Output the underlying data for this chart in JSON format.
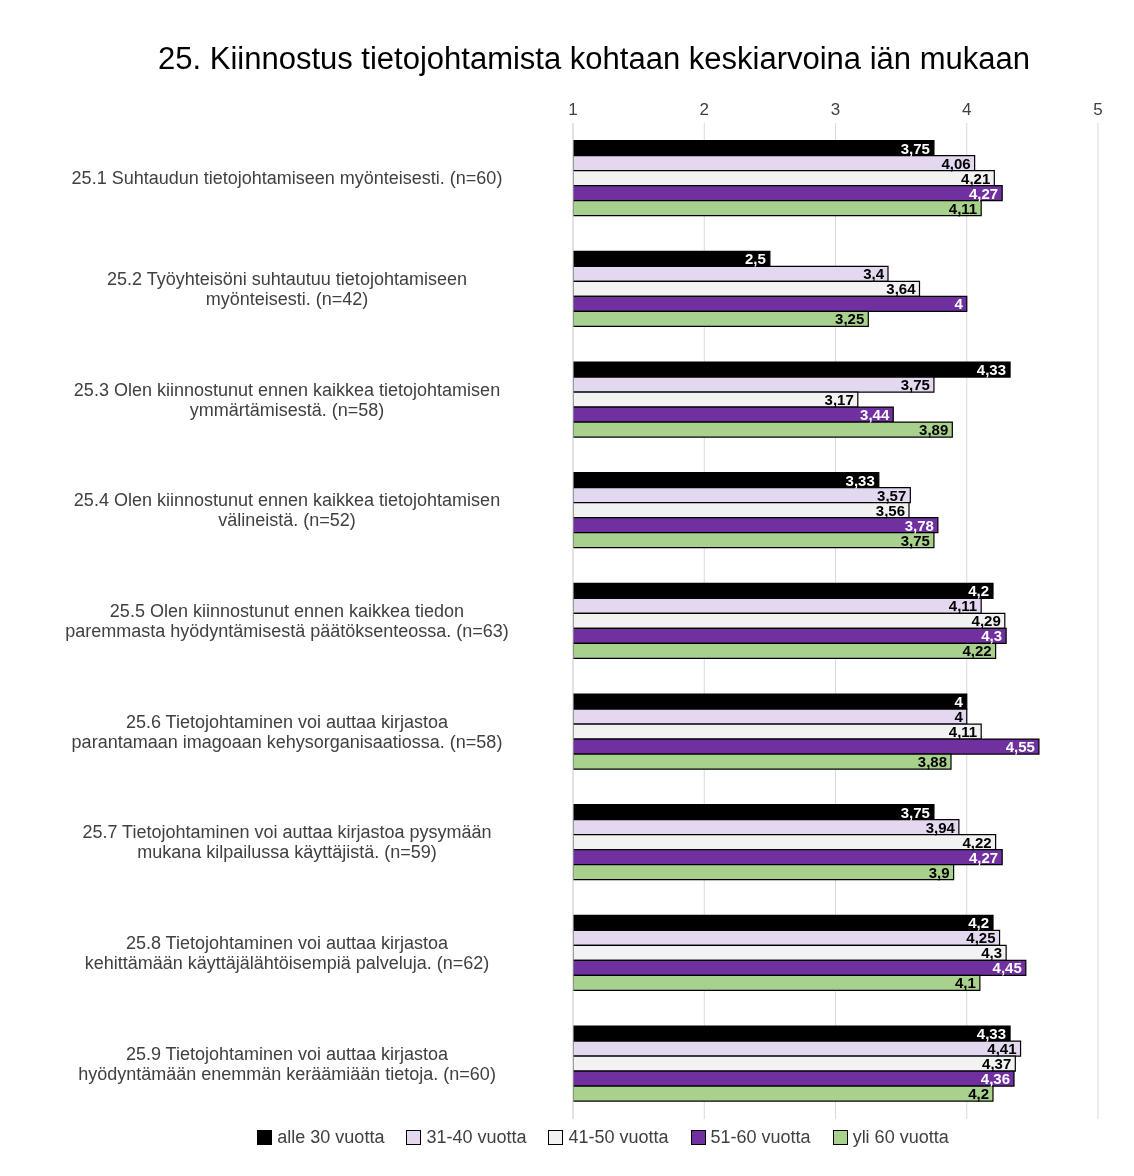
{
  "chart_data": {
    "type": "bar",
    "orientation": "horizontal",
    "title": "25. Kiinnostus tietojohtamista kohtaan keskiarvoina iän mukaan",
    "categories": [
      "25.1 Suhtaudun tietojohtamiseen myönteisesti. (n=60)",
      "25.2 Työyhteisöni suhtautuu tietojohtamiseen myönteisesti. (n=42)",
      "25.3 Olen kiinnostunut ennen kaikkea tietojohtamisen ymmärtämisestä. (n=58)",
      "25.4 Olen kiinnostunut ennen kaikkea tietojohtamisen välineistä. (n=52)",
      "25.5 Olen kiinnostunut ennen kaikkea tiedon paremmasta hyödyntämisestä päätöksenteossa. (n=63)",
      "25.6 Tietojohtaminen voi auttaa kirjastoa parantamaan imagoaan kehysorganisaatiossa. (n=58)",
      "25.7 Tietojohtaminen voi auttaa kirjastoa pysymään mukana kilpailussa käyttäjistä. (n=59)",
      "25.8 Tietojohtaminen voi auttaa kirjastoa kehittämään käyttäjälähtöisempiä palveluja. (n=62)",
      "25.9 Tietojohtaminen voi auttaa kirjastoa hyödyntämään enemmän keräämiään tietoja. (n=60)"
    ],
    "series": [
      {
        "name": "alle 30 vuotta",
        "color": "#000000",
        "values": [
          3.75,
          2.5,
          4.33,
          3.33,
          4.2,
          4,
          3.75,
          4.2,
          4.33
        ],
        "value_labels": [
          "3,75",
          "2,5",
          "4,33",
          "3,33",
          "4,2",
          "4",
          "3,75",
          "4,2",
          "4,33"
        ]
      },
      {
        "name": "31-40 vuotta",
        "color": "#e4d7f0",
        "values": [
          4.06,
          3.4,
          3.75,
          3.57,
          4.11,
          4,
          3.94,
          4.25,
          4.41
        ],
        "value_labels": [
          "4,06",
          "3,4",
          "3,75",
          "3,57",
          "4,11",
          "4",
          "3,94",
          "4,25",
          "4,41"
        ]
      },
      {
        "name": "41-50 vuotta",
        "color": "#f2f2f2",
        "values": [
          4.21,
          3.64,
          3.17,
          3.56,
          4.29,
          4.11,
          4.22,
          4.3,
          4.37
        ],
        "value_labels": [
          "4,21",
          "3,64",
          "3,17",
          "3,56",
          "4,29",
          "4,11",
          "4,22",
          "4,3",
          "4,37"
        ]
      },
      {
        "name": "51-60 vuotta",
        "color": "#7030a0",
        "values": [
          4.27,
          4,
          3.44,
          3.78,
          4.3,
          4.55,
          4.27,
          4.45,
          4.36
        ],
        "value_labels": [
          "4,27",
          "4",
          "3,44",
          "3,78",
          "4,3",
          "4,55",
          "4,27",
          "4,45",
          "4,36"
        ]
      },
      {
        "name": "yli 60 vuotta",
        "color": "#a9d18e",
        "values": [
          4.11,
          3.25,
          3.89,
          3.75,
          4.22,
          3.88,
          3.9,
          4.1,
          4.2
        ],
        "value_labels": [
          "4,11",
          "3,25",
          "3,89",
          "3,75",
          "4,22",
          "3,88",
          "3,9",
          "4,1",
          "4,2"
        ]
      }
    ],
    "xlim": [
      1,
      5
    ],
    "xticks": [
      1,
      2,
      3,
      4,
      5
    ],
    "grid": "x",
    "legend": "bottom"
  }
}
